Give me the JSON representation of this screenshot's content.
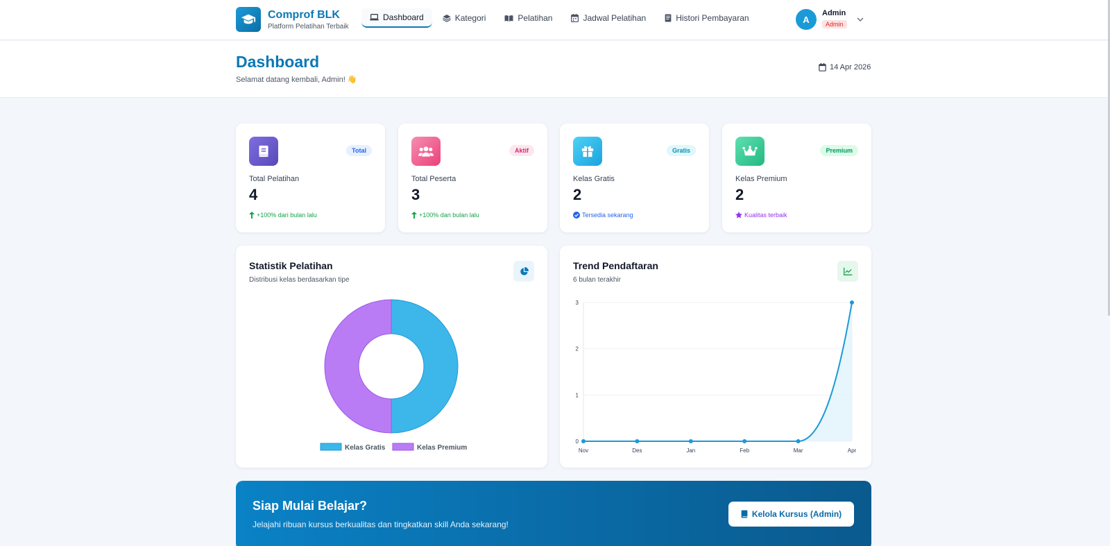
{
  "brand": {
    "name": "Comprof BLK",
    "tagline": "Platform Pelatihan Terbaik"
  },
  "nav": [
    {
      "label": "Dashboard",
      "icon": "laptop-icon",
      "active": true
    },
    {
      "label": "Kategori",
      "icon": "layers-icon",
      "active": false
    },
    {
      "label": "Pelatihan",
      "icon": "book-open-icon",
      "active": false
    },
    {
      "label": "Jadwal Pelatihan",
      "icon": "calendar-icon",
      "active": false
    },
    {
      "label": "Histori Pembayaran",
      "icon": "receipt-icon",
      "active": false
    }
  ],
  "user": {
    "initial": "A",
    "name": "Admin",
    "role": "Admin"
  },
  "header": {
    "title": "Dashboard",
    "subtitle": "Selamat datang kembali, Admin! 👋",
    "date": "14 Apr 2026"
  },
  "stats": [
    {
      "label": "Total Pelatihan",
      "value": "4",
      "badge": "Total",
      "note": "+100% dari bulan lalu",
      "icon": "book-icon",
      "color": "#6d5bd0"
    },
    {
      "label": "Total Peserta",
      "value": "3",
      "badge": "Aktif",
      "note": "+100% dari bulan lalu",
      "icon": "users-icon",
      "color": "#f06292"
    },
    {
      "label": "Kelas Gratis",
      "value": "2",
      "badge": "Gratis",
      "note": "Tersedia sekarang",
      "icon": "gift-icon",
      "color": "#22b8e8"
    },
    {
      "label": "Kelas Premium",
      "value": "2",
      "badge": "Premium",
      "note": "Kualitas terbaik",
      "icon": "crown-icon",
      "color": "#34d399"
    }
  ],
  "donut": {
    "title": "Statistik Pelatihan",
    "subtitle": "Distribusi kelas berdasarkan tipe",
    "icon": "pie-chart-icon"
  },
  "trend": {
    "title": "Trend Pendaftaran",
    "subtitle": "6 bulan terakhir",
    "icon": "line-chart-icon"
  },
  "chart_data": [
    {
      "type": "pie",
      "categories": [
        "Kelas Gratis",
        "Kelas Premium"
      ],
      "values": [
        2,
        2
      ],
      "colors": [
        "#3db6ea",
        "#b97cf5"
      ],
      "legend": "bottom"
    },
    {
      "type": "line",
      "x": [
        "Nov",
        "Des",
        "Jan",
        "Feb",
        "Mar",
        "Apr"
      ],
      "values": [
        0,
        0,
        0,
        0,
        0,
        3
      ],
      "ylim": [
        0,
        3
      ],
      "yticks": [
        "0",
        "1",
        "2",
        "3"
      ],
      "color": "#1b9ad8",
      "grid": true
    }
  ],
  "cta": {
    "title": "Siap Mulai Belajar?",
    "text": "Jelajahi ribuan kursus berkualitas dan tingkatkan skill Anda sekarang!",
    "button": "Kelola Kursus (Admin)"
  }
}
